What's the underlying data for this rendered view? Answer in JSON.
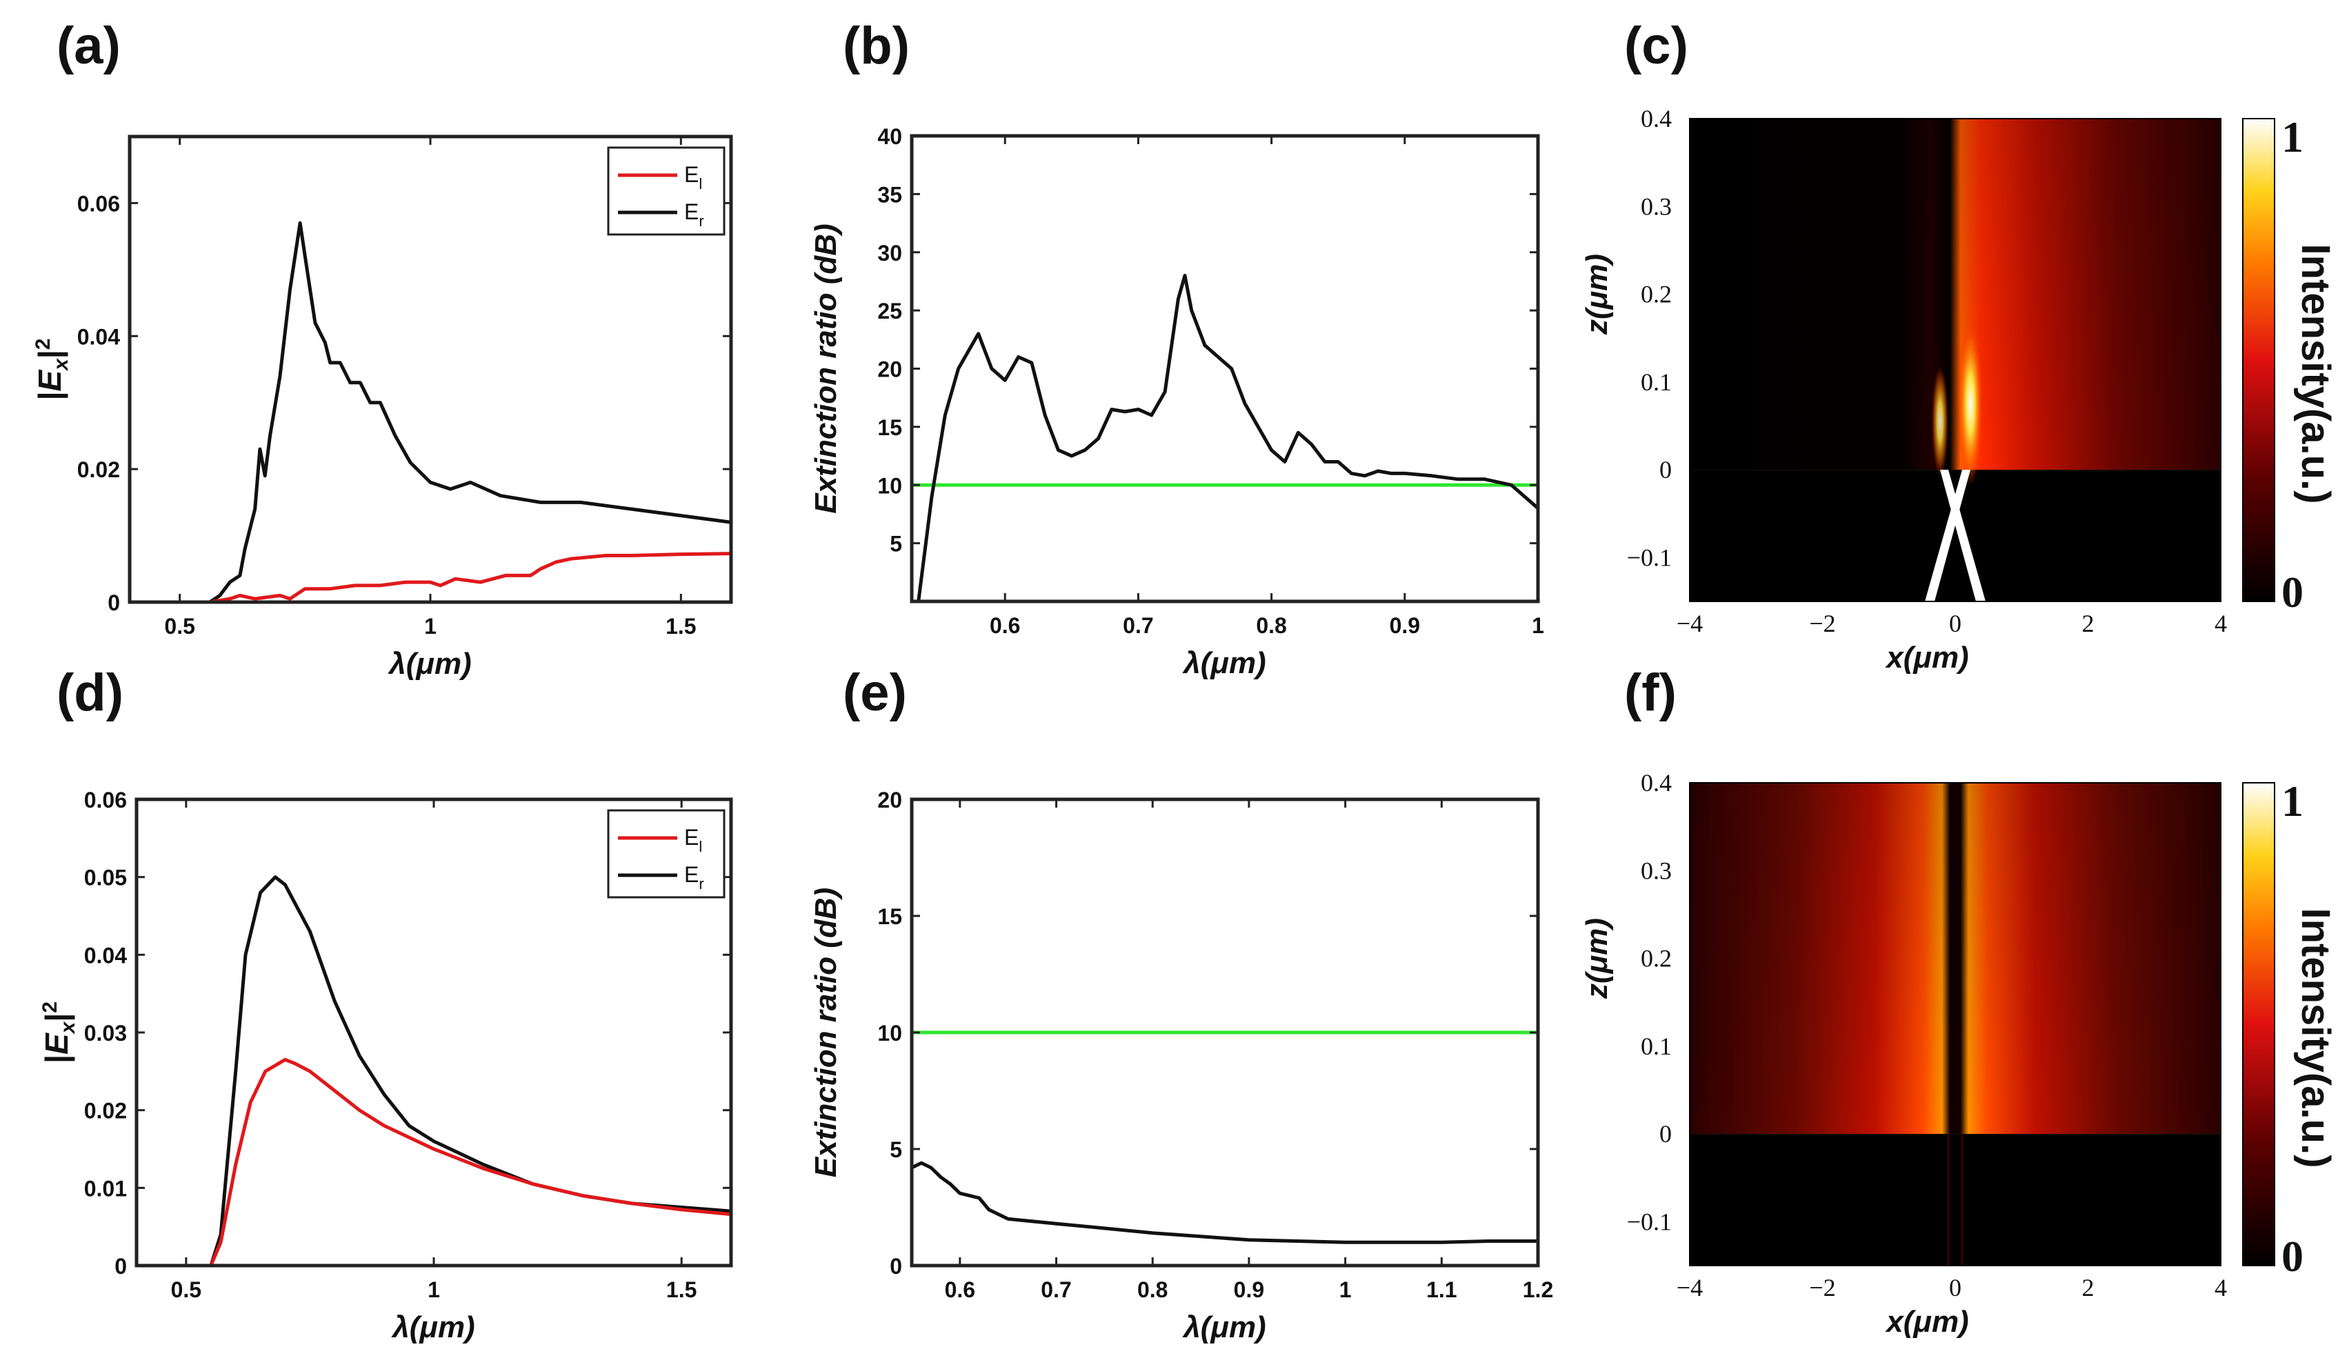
{
  "panels": {
    "a": "(a)",
    "b": "(b)",
    "c": "(c)",
    "d": "(d)",
    "e": "(e)",
    "f": "(f)"
  },
  "colors": {
    "E_l": "#e0191b",
    "E_r": "#111111",
    "threshold": "#2ee62e"
  },
  "chart_data": [
    {
      "id": "a",
      "type": "line",
      "xlabel": "λ(μm)",
      "ylabel": "|E_x|²",
      "xlim": [
        0.4,
        1.6
      ],
      "ylim": [
        0,
        0.07
      ],
      "xticks": [
        0.5,
        1,
        1.5
      ],
      "xtick_labels": [
        "0.5",
        "1",
        "1.5"
      ],
      "yticks": [
        0,
        0.02,
        0.04,
        0.06
      ],
      "ytick_labels": [
        "0",
        "0.02",
        "0.04",
        "0.06"
      ],
      "legend": {
        "position": "top-right",
        "entries": [
          {
            "name": "E",
            "sub": "l"
          },
          {
            "name": "E",
            "sub": "r"
          }
        ]
      },
      "series": [
        {
          "name": "E_r",
          "x": [
            0.4,
            0.56,
            0.58,
            0.6,
            0.62,
            0.63,
            0.65,
            0.66,
            0.67,
            0.68,
            0.7,
            0.72,
            0.74,
            0.75,
            0.77,
            0.79,
            0.8,
            0.82,
            0.84,
            0.86,
            0.88,
            0.9,
            0.93,
            0.96,
            1.0,
            1.04,
            1.08,
            1.14,
            1.22,
            1.3,
            1.4,
            1.5,
            1.6
          ],
          "y": [
            0,
            0,
            0.001,
            0.003,
            0.004,
            0.008,
            0.014,
            0.023,
            0.019,
            0.025,
            0.034,
            0.047,
            0.057,
            0.052,
            0.042,
            0.039,
            0.036,
            0.036,
            0.033,
            0.033,
            0.03,
            0.03,
            0.025,
            0.021,
            0.018,
            0.017,
            0.018,
            0.016,
            0.015,
            0.015,
            0.014,
            0.013,
            0.012
          ]
        },
        {
          "name": "E_l",
          "x": [
            0.4,
            0.56,
            0.6,
            0.62,
            0.65,
            0.7,
            0.72,
            0.75,
            0.8,
            0.85,
            0.9,
            0.95,
            1.0,
            1.02,
            1.05,
            1.1,
            1.15,
            1.2,
            1.22,
            1.25,
            1.28,
            1.35,
            1.4,
            1.5,
            1.6
          ],
          "y": [
            0,
            0,
            0.0005,
            0.001,
            0.0005,
            0.001,
            0.0005,
            0.002,
            0.002,
            0.0025,
            0.0025,
            0.003,
            0.003,
            0.0025,
            0.0035,
            0.003,
            0.004,
            0.004,
            0.005,
            0.006,
            0.0065,
            0.007,
            0.007,
            0.0072,
            0.0073
          ]
        }
      ]
    },
    {
      "id": "b",
      "type": "line",
      "xlabel": "λ(μm)",
      "ylabel": "Extinction ratio (dB)",
      "xlim": [
        0.53,
        1.0
      ],
      "ylim": [
        0,
        40
      ],
      "xticks": [
        0.6,
        0.7,
        0.8,
        0.9,
        1.0
      ],
      "xtick_labels": [
        "0.6",
        "0.7",
        "0.8",
        "0.9",
        "1"
      ],
      "yticks": [
        5,
        10,
        15,
        20,
        25,
        30,
        35,
        40
      ],
      "ytick_labels": [
        "5",
        "10",
        "15",
        "20",
        "25",
        "30",
        "35",
        "40"
      ],
      "threshold": 10,
      "series": [
        {
          "name": "ER",
          "x": [
            0.535,
            0.545,
            0.555,
            0.565,
            0.575,
            0.58,
            0.59,
            0.6,
            0.61,
            0.62,
            0.63,
            0.64,
            0.65,
            0.66,
            0.67,
            0.68,
            0.69,
            0.7,
            0.71,
            0.72,
            0.73,
            0.735,
            0.74,
            0.75,
            0.76,
            0.77,
            0.78,
            0.79,
            0.8,
            0.81,
            0.82,
            0.83,
            0.84,
            0.85,
            0.86,
            0.87,
            0.88,
            0.89,
            0.9,
            0.92,
            0.94,
            0.96,
            0.98,
            1.0
          ],
          "y": [
            0,
            9,
            16,
            20,
            22,
            23,
            20,
            19,
            21,
            20.5,
            16,
            13,
            12.5,
            13,
            14,
            16.5,
            16.3,
            16.5,
            16,
            18,
            26,
            28,
            25,
            22,
            21,
            20,
            17,
            15,
            13,
            12,
            14.5,
            13.5,
            12,
            12,
            11,
            10.8,
            11.2,
            11,
            11,
            10.8,
            10.5,
            10.5,
            10,
            8
          ]
        }
      ]
    },
    {
      "id": "c",
      "type": "heatmap",
      "xlabel": "x(μm)",
      "ylabel": "z(μm)",
      "xlim": [
        -4,
        4
      ],
      "ylim": [
        -0.15,
        0.4
      ],
      "xticks": [
        -4,
        -2,
        0,
        2,
        4
      ],
      "xtick_labels": [
        "−4",
        "−2",
        "0",
        "2",
        "4"
      ],
      "yticks": [
        -0.1,
        0,
        0.1,
        0.2,
        0.3,
        0.4
      ],
      "ytick_labels": [
        "−0.1",
        "0",
        "0.1",
        "0.2",
        "0.3",
        "0.4"
      ],
      "colorbar": {
        "label": "Intensity(a.u.)",
        "min_label": "0",
        "max_label": "1"
      }
    },
    {
      "id": "d",
      "type": "line",
      "xlabel": "λ(μm)",
      "ylabel": "|E_x|²",
      "xlim": [
        0.4,
        1.6
      ],
      "ylim": [
        0,
        0.06
      ],
      "xticks": [
        0.5,
        1,
        1.5
      ],
      "xtick_labels": [
        "0.5",
        "1",
        "1.5"
      ],
      "yticks": [
        0,
        0.01,
        0.02,
        0.03,
        0.04,
        0.05,
        0.06
      ],
      "ytick_labels": [
        "0",
        "0.01",
        "0.02",
        "0.03",
        "0.04",
        "0.05",
        "0.06"
      ],
      "legend": {
        "position": "top-right",
        "entries": [
          {
            "name": "E",
            "sub": "l"
          },
          {
            "name": "E",
            "sub": "r"
          }
        ]
      },
      "series": [
        {
          "name": "E_r",
          "x": [
            0.4,
            0.55,
            0.57,
            0.6,
            0.62,
            0.65,
            0.68,
            0.7,
            0.75,
            0.8,
            0.85,
            0.9,
            0.95,
            1.0,
            1.1,
            1.2,
            1.3,
            1.4,
            1.5,
            1.6
          ],
          "y": [
            0,
            0,
            0.004,
            0.025,
            0.04,
            0.048,
            0.05,
            0.049,
            0.043,
            0.034,
            0.027,
            0.022,
            0.018,
            0.016,
            0.013,
            0.0105,
            0.009,
            0.008,
            0.0075,
            0.007
          ]
        },
        {
          "name": "E_l",
          "x": [
            0.4,
            0.55,
            0.57,
            0.6,
            0.63,
            0.66,
            0.7,
            0.72,
            0.75,
            0.8,
            0.85,
            0.9,
            0.95,
            1.0,
            1.1,
            1.2,
            1.3,
            1.4,
            1.5,
            1.6
          ],
          "y": [
            0,
            0,
            0.003,
            0.013,
            0.021,
            0.025,
            0.0265,
            0.026,
            0.025,
            0.0225,
            0.02,
            0.018,
            0.0165,
            0.015,
            0.0125,
            0.0105,
            0.009,
            0.008,
            0.0072,
            0.0066
          ]
        }
      ]
    },
    {
      "id": "e",
      "type": "line",
      "xlabel": "λ(μm)",
      "ylabel": "Extinction ratio (dB)",
      "xlim": [
        0.55,
        1.2
      ],
      "ylim": [
        0,
        20
      ],
      "xticks": [
        0.6,
        0.7,
        0.8,
        0.9,
        1.0,
        1.1,
        1.2
      ],
      "xtick_labels": [
        "0.6",
        "0.7",
        "0.8",
        "0.9",
        "1",
        "1.1",
        "1.2"
      ],
      "yticks": [
        0,
        5,
        10,
        15,
        20
      ],
      "ytick_labels": [
        "0",
        "5",
        "10",
        "15",
        "20"
      ],
      "threshold": 10,
      "series": [
        {
          "name": "ER",
          "x": [
            0.55,
            0.56,
            0.57,
            0.58,
            0.59,
            0.6,
            0.61,
            0.62,
            0.63,
            0.64,
            0.65,
            0.7,
            0.75,
            0.8,
            0.85,
            0.9,
            0.95,
            1.0,
            1.05,
            1.1,
            1.15,
            1.2
          ],
          "y": [
            4.2,
            4.4,
            4.2,
            3.8,
            3.5,
            3.1,
            3.0,
            2.9,
            2.4,
            2.2,
            2.0,
            1.8,
            1.6,
            1.4,
            1.25,
            1.1,
            1.05,
            1.0,
            1.0,
            1.0,
            1.05,
            1.05
          ]
        }
      ]
    },
    {
      "id": "f",
      "type": "heatmap",
      "xlabel": "x(μm)",
      "ylabel": "z(μm)",
      "xlim": [
        -4,
        4
      ],
      "ylim": [
        -0.15,
        0.4
      ],
      "xticks": [
        -4,
        -2,
        0,
        2,
        4
      ],
      "xtick_labels": [
        "−4",
        "−2",
        "0",
        "2",
        "4"
      ],
      "yticks": [
        -0.1,
        0,
        0.1,
        0.2,
        0.3,
        0.4
      ],
      "ytick_labels": [
        "−0.1",
        "0",
        "0.1",
        "0.2",
        "0.3",
        "0.4"
      ],
      "colorbar": {
        "label": "Intensity(a.u.)",
        "min_label": "0",
        "max_label": "1"
      }
    }
  ]
}
